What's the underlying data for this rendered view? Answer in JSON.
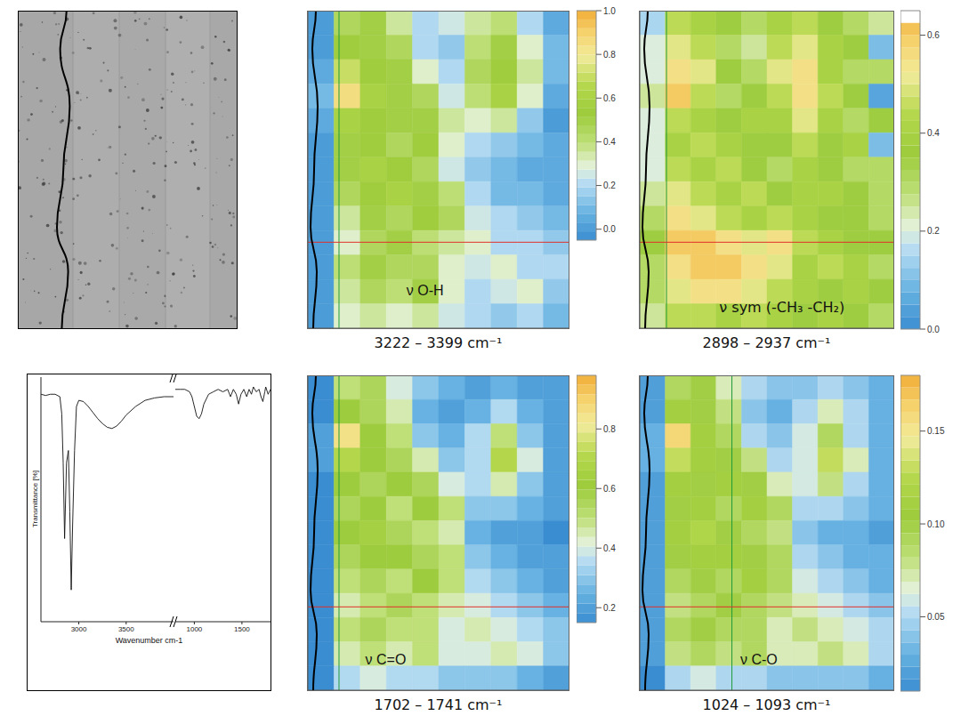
{
  "chart_data": [
    {
      "type": "line",
      "xlabel": "Wavenumber cm-1",
      "ylabel": "Transmittance [%]",
      "ylim": [
        0,
        100
      ],
      "tick_labels": "x",
      "segments": [
        {
          "xlim": [
            4000,
            2600
          ],
          "xticks": [
            3500,
            3000
          ],
          "x": [
            4000,
            3900,
            3800,
            3700,
            3600,
            3500,
            3450,
            3400,
            3350,
            3300,
            3250,
            3200,
            3150,
            3100,
            3050,
            3000,
            2975,
            2955,
            2935,
            2920,
            2905,
            2890,
            2870,
            2850,
            2835,
            2820,
            2800,
            2750,
            2700,
            2650,
            2600
          ],
          "values": [
            92,
            92,
            91.5,
            90.5,
            88,
            84.5,
            82,
            80,
            79,
            79.5,
            81,
            83,
            85.5,
            88,
            90,
            90.5,
            88,
            70,
            40,
            13,
            45,
            70,
            65,
            34,
            65,
            85,
            92,
            93,
            93,
            92.5,
            93
          ]
        },
        {
          "xlim": [
            1800,
            800
          ],
          "xticks": [
            1500,
            1000
          ],
          "x": [
            1800,
            1775,
            1750,
            1740,
            1720,
            1700,
            1680,
            1650,
            1620,
            1600,
            1575,
            1550,
            1520,
            1490,
            1465,
            1440,
            1410,
            1380,
            1350,
            1300,
            1250,
            1200,
            1150,
            1100,
            1075,
            1050,
            1025,
            1000,
            975,
            950,
            900,
            850,
            800
          ],
          "values": [
            95,
            93,
            96,
            94,
            90,
            92,
            95,
            94,
            96,
            93,
            95,
            92,
            95,
            93,
            89,
            93,
            95,
            92,
            95,
            94,
            95,
            94,
            93,
            89,
            85,
            83,
            84,
            88,
            92,
            94,
            95,
            95,
            95
          ]
        }
      ]
    },
    {
      "type": "heatmap",
      "annotation": "ν O-H",
      "title": "3222 – 3399 cm⁻¹",
      "xlim": [
        0,
        10
      ],
      "ylim": [
        0,
        13
      ],
      "tick_labels": false,
      "crosshair": {
        "x": 1.19,
        "y": 9.48
      },
      "colorbar": {
        "range": [
          -0.05,
          1
        ],
        "ticks": [
          {
            "value": 0,
            "label": "0.0"
          },
          0.2,
          0.4,
          0.6,
          0.8,
          {
            "value": 1,
            "label": "1.0"
          }
        ]
      },
      "cells": [
        [
          0.0,
          0.45,
          0.5,
          0.35,
          0.2,
          0.25,
          0.35,
          0.4,
          0.2,
          0.05
        ],
        [
          0.0,
          0.55,
          0.5,
          0.45,
          0.2,
          0.15,
          0.4,
          0.5,
          0.3,
          0.1
        ],
        [
          0.05,
          0.7,
          0.55,
          0.5,
          0.3,
          0.2,
          0.45,
          0.55,
          0.35,
          0.1
        ],
        [
          0.1,
          0.85,
          0.6,
          0.5,
          0.45,
          0.25,
          0.4,
          0.6,
          0.3,
          0.05
        ],
        [
          0.05,
          0.6,
          0.55,
          0.5,
          0.5,
          0.35,
          0.3,
          0.35,
          0.15,
          0.0
        ],
        [
          0.0,
          0.5,
          0.55,
          0.45,
          0.55,
          0.3,
          0.2,
          0.15,
          0.1,
          0.05
        ],
        [
          0.0,
          0.5,
          0.6,
          0.55,
          0.45,
          0.25,
          0.15,
          0.1,
          0.05,
          0.05
        ],
        [
          0.0,
          0.45,
          0.55,
          0.6,
          0.5,
          0.4,
          0.2,
          0.1,
          0.1,
          0.05
        ],
        [
          0.0,
          0.35,
          0.5,
          0.45,
          0.55,
          0.45,
          0.25,
          0.2,
          0.15,
          0.1
        ],
        [
          0.0,
          0.3,
          0.45,
          0.5,
          0.4,
          0.35,
          0.3,
          0.2,
          0.2,
          0.15
        ],
        [
          0.0,
          0.4,
          0.5,
          0.45,
          0.45,
          0.3,
          0.25,
          0.3,
          0.2,
          0.2
        ],
        [
          0.0,
          0.35,
          0.45,
          0.4,
          0.5,
          0.3,
          0.2,
          0.25,
          0.3,
          0.15
        ],
        [
          0.0,
          0.3,
          0.35,
          0.3,
          0.35,
          0.25,
          0.2,
          0.15,
          0.2,
          0.1
        ]
      ]
    },
    {
      "type": "heatmap",
      "annotation": "ν sym (-CH₃ -CH₂)",
      "title": "2898 – 2937 cm⁻¹",
      "xlim": [
        0,
        10
      ],
      "ylim": [
        0,
        13
      ],
      "tick_labels": false,
      "crosshair": {
        "x": 1.05,
        "y": 9.48
      },
      "colorbar": {
        "range": [
          0,
          0.65
        ],
        "ticks": [
          {
            "value": 0,
            "label": "0.0"
          },
          0.2,
          0.4,
          0.6
        ]
      },
      "cells": [
        [
          0.15,
          0.45,
          0.4,
          0.35,
          0.3,
          0.4,
          0.45,
          0.35,
          0.3,
          0.25
        ],
        [
          0.2,
          0.5,
          0.45,
          0.3,
          0.25,
          0.45,
          0.5,
          0.4,
          0.35,
          0.1
        ],
        [
          0.2,
          0.55,
          0.5,
          0.35,
          0.3,
          0.5,
          0.55,
          0.4,
          0.3,
          0.3
        ],
        [
          0.25,
          0.6,
          0.45,
          0.3,
          0.35,
          0.45,
          0.55,
          0.45,
          0.35,
          0.05
        ],
        [
          0.2,
          0.45,
          0.4,
          0.35,
          0.4,
          0.4,
          0.5,
          0.4,
          0.3,
          0.35
        ],
        [
          0.2,
          0.4,
          0.45,
          0.4,
          0.35,
          0.35,
          0.45,
          0.35,
          0.4,
          0.1
        ],
        [
          0.2,
          0.45,
          0.4,
          0.45,
          0.35,
          0.3,
          0.4,
          0.35,
          0.3,
          0.3
        ],
        [
          0.25,
          0.5,
          0.45,
          0.4,
          0.45,
          0.35,
          0.4,
          0.4,
          0.35,
          0.3
        ],
        [
          0.3,
          0.55,
          0.5,
          0.45,
          0.4,
          0.45,
          0.4,
          0.35,
          0.35,
          0.3
        ],
        [
          0.35,
          0.6,
          0.6,
          0.55,
          0.5,
          0.55,
          0.45,
          0.4,
          0.35,
          0.35
        ],
        [
          0.3,
          0.55,
          0.6,
          0.6,
          0.55,
          0.5,
          0.4,
          0.45,
          0.4,
          0.3
        ],
        [
          0.3,
          0.5,
          0.55,
          0.55,
          0.5,
          0.45,
          0.4,
          0.35,
          0.4,
          0.35
        ],
        [
          0.25,
          0.45,
          0.45,
          0.4,
          0.45,
          0.4,
          0.35,
          0.4,
          0.35,
          0.3
        ]
      ]
    },
    {
      "type": "heatmap",
      "annotation": "ν C=O",
      "title": "1702 – 1741 cm⁻¹",
      "xlim": [
        0,
        10
      ],
      "ylim": [
        0,
        13
      ],
      "tick_labels": false,
      "crosshair": {
        "x": 1.19,
        "y": 9.56
      },
      "colorbar": {
        "range": [
          0.15,
          0.98
        ],
        "ticks": [
          0.2,
          0.4,
          0.6,
          0.8
        ]
      },
      "cells": [
        [
          0.15,
          0.5,
          0.55,
          0.4,
          0.3,
          0.25,
          0.2,
          0.25,
          0.2,
          0.2
        ],
        [
          0.15,
          0.6,
          0.55,
          0.45,
          0.25,
          0.2,
          0.25,
          0.35,
          0.25,
          0.2
        ],
        [
          0.2,
          0.85,
          0.6,
          0.5,
          0.3,
          0.25,
          0.35,
          0.5,
          0.3,
          0.2
        ],
        [
          0.2,
          0.7,
          0.6,
          0.55,
          0.45,
          0.3,
          0.35,
          0.7,
          0.4,
          0.2
        ],
        [
          0.15,
          0.6,
          0.55,
          0.6,
          0.55,
          0.4,
          0.35,
          0.45,
          0.3,
          0.2
        ],
        [
          0.15,
          0.55,
          0.6,
          0.5,
          0.6,
          0.5,
          0.3,
          0.3,
          0.25,
          0.2
        ],
        [
          0.15,
          0.6,
          0.65,
          0.55,
          0.5,
          0.45,
          0.25,
          0.2,
          0.2,
          0.15
        ],
        [
          0.15,
          0.55,
          0.6,
          0.6,
          0.55,
          0.5,
          0.3,
          0.25,
          0.2,
          0.2
        ],
        [
          0.15,
          0.5,
          0.55,
          0.5,
          0.6,
          0.5,
          0.35,
          0.3,
          0.25,
          0.2
        ],
        [
          0.15,
          0.45,
          0.5,
          0.55,
          0.5,
          0.45,
          0.4,
          0.35,
          0.3,
          0.25
        ],
        [
          0.15,
          0.5,
          0.55,
          0.5,
          0.5,
          0.4,
          0.45,
          0.4,
          0.35,
          0.3
        ],
        [
          0.15,
          0.45,
          0.5,
          0.45,
          0.5,
          0.4,
          0.4,
          0.45,
          0.4,
          0.3
        ],
        [
          0.15,
          0.35,
          0.4,
          0.35,
          0.35,
          0.3,
          0.3,
          0.3,
          0.25,
          0.2
        ]
      ]
    },
    {
      "type": "heatmap",
      "annotation": "ν C-O",
      "title": "1024 – 1093 cm⁻¹",
      "xlim": [
        0,
        10
      ],
      "ylim": [
        0,
        13
      ],
      "tick_labels": false,
      "crosshair": {
        "x": 3.62,
        "y": 9.56
      },
      "colorbar": {
        "range": [
          0.01,
          0.18
        ],
        "ticks": [
          0.05,
          {
            "value": 0.1,
            "label": "0.10"
          },
          0.15
        ]
      },
      "cells": [
        [
          0.02,
          0.09,
          0.1,
          0.07,
          0.05,
          0.04,
          0.04,
          0.05,
          0.04,
          0.03
        ],
        [
          0.02,
          0.11,
          0.1,
          0.08,
          0.04,
          0.03,
          0.05,
          0.07,
          0.05,
          0.03
        ],
        [
          0.03,
          0.16,
          0.11,
          0.09,
          0.05,
          0.04,
          0.06,
          0.09,
          0.05,
          0.03
        ],
        [
          0.03,
          0.13,
          0.11,
          0.1,
          0.08,
          0.05,
          0.06,
          0.13,
          0.07,
          0.03
        ],
        [
          0.02,
          0.11,
          0.1,
          0.11,
          0.1,
          0.07,
          0.06,
          0.08,
          0.05,
          0.03
        ],
        [
          0.02,
          0.1,
          0.11,
          0.09,
          0.11,
          0.09,
          0.05,
          0.05,
          0.04,
          0.03
        ],
        [
          0.02,
          0.11,
          0.12,
          0.1,
          0.09,
          0.08,
          0.04,
          0.03,
          0.03,
          0.02
        ],
        [
          0.02,
          0.1,
          0.11,
          0.11,
          0.1,
          0.09,
          0.05,
          0.04,
          0.03,
          0.03
        ],
        [
          0.02,
          0.09,
          0.1,
          0.09,
          0.11,
          0.09,
          0.06,
          0.05,
          0.04,
          0.03
        ],
        [
          0.02,
          0.08,
          0.09,
          0.1,
          0.09,
          0.08,
          0.07,
          0.06,
          0.05,
          0.04
        ],
        [
          0.02,
          0.09,
          0.1,
          0.09,
          0.09,
          0.07,
          0.08,
          0.07,
          0.06,
          0.05
        ],
        [
          0.02,
          0.08,
          0.09,
          0.08,
          0.09,
          0.07,
          0.07,
          0.08,
          0.07,
          0.05
        ],
        [
          0.01,
          0.05,
          0.06,
          0.05,
          0.05,
          0.04,
          0.04,
          0.04,
          0.04,
          0.03
        ]
      ]
    }
  ]
}
